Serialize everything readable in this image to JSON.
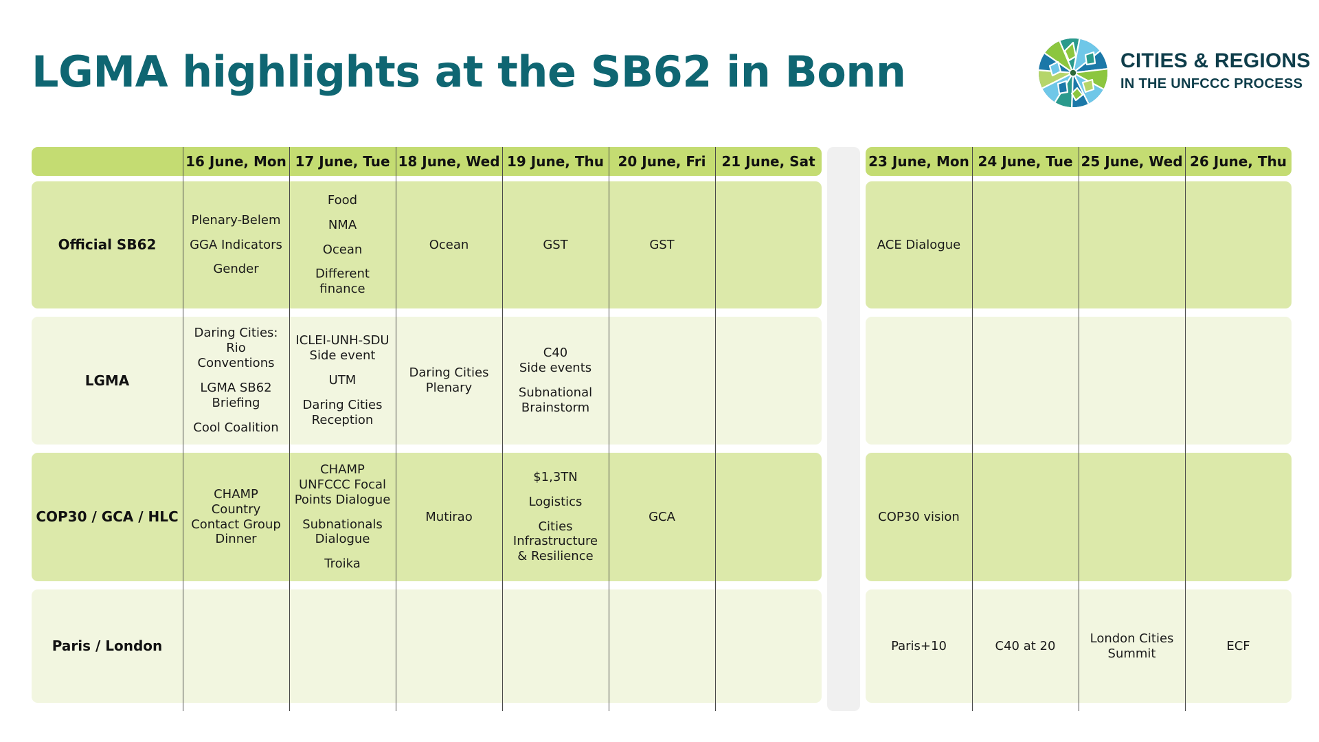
{
  "title": "LGMA highlights at the SB62 in Bonn",
  "logo": {
    "line1": "CITIES & REGIONS",
    "line2": "IN THE UNFCCC PROCESS"
  },
  "colors": {
    "title": "#0f6672",
    "header_band": "#c4dc72",
    "row_dark": "#dce9aa",
    "row_light": "#f2f6e0",
    "spacer": "#f0f0f0"
  },
  "week1_days": [
    "16 June, Mon",
    "17 June, Tue",
    "18 June, Wed",
    "19 June, Thu",
    "20 June, Fri",
    "21 June, Sat"
  ],
  "week2_days": [
    "23 June, Mon",
    "24 June, Tue",
    "25 June, Wed",
    "26 June, Thu"
  ],
  "rows": [
    {
      "label": "Official SB62",
      "week1": [
        [
          "Plenary-Belem",
          "GGA Indicators",
          "Gender"
        ],
        [
          "Food",
          "NMA",
          "Ocean",
          "Different\nfinance"
        ],
        [
          "Ocean"
        ],
        [
          "GST"
        ],
        [
          "GST"
        ],
        []
      ],
      "week2": [
        [
          "ACE Dialogue"
        ],
        [],
        [],
        []
      ]
    },
    {
      "label": "LGMA",
      "week1": [
        [
          "Daring Cities:\nRio\nConventions",
          "LGMA SB62\nBriefing",
          "Cool Coalition"
        ],
        [
          "ICLEI-UNH-SDU\nSide event",
          "UTM",
          "Daring Cities\nReception"
        ],
        [
          "Daring Cities\nPlenary"
        ],
        [
          "C40\nSide events",
          "Subnational\nBrainstorm"
        ],
        [],
        []
      ],
      "week2": [
        [],
        [],
        [],
        []
      ]
    },
    {
      "label": "COP30 / GCA / HLC",
      "week1": [
        [
          "CHAMP\nCountry\nContact Group\nDinner"
        ],
        [
          "CHAMP\nUNFCCC Focal\nPoints Dialogue",
          "Subnationals\nDialogue",
          "Troika"
        ],
        [
          "Mutirao"
        ],
        [
          "$1,3TN",
          "Logistics",
          "Cities\nInfrastructure\n& Resilience"
        ],
        [
          "GCA"
        ],
        []
      ],
      "week2": [
        [
          "COP30 vision"
        ],
        [],
        [],
        []
      ]
    },
    {
      "label": "Paris / London",
      "week1": [
        [],
        [],
        [],
        [],
        [],
        []
      ],
      "week2": [
        [
          "Paris+10"
        ],
        [
          "C40 at 20"
        ],
        [
          "London Cities\nSummit"
        ],
        [
          "ECF"
        ]
      ]
    }
  ]
}
